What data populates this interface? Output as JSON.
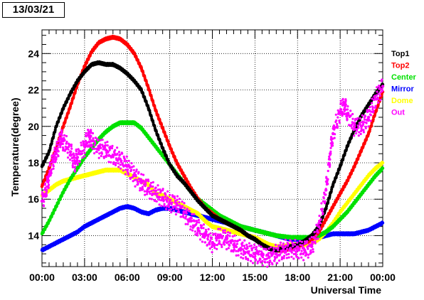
{
  "header": {
    "date_label": "13/03/21"
  },
  "chart_data": {
    "type": "scatter",
    "title": "",
    "xlabel": "Universal Time",
    "ylabel": "Temperature(degree)",
    "xlim": [
      0,
      24
    ],
    "ylim": [
      12.3,
      25.3
    ],
    "x_ticks": [
      0,
      3,
      6,
      9,
      12,
      15,
      18,
      21,
      24
    ],
    "x_tick_labels": [
      "00:00",
      "03:00",
      "06:00",
      "09:00",
      "12:00",
      "15:00",
      "18:00",
      "21:00",
      "00:00"
    ],
    "y_ticks": [
      14,
      16,
      18,
      20,
      22,
      24
    ],
    "y_tick_labels": [
      "14",
      "16",
      "18",
      "20",
      "22",
      "24"
    ],
    "grid": true,
    "legend_position": "right",
    "series": [
      {
        "name": "Top1",
        "color": "#000000",
        "points": [
          [
            0,
            17.8
          ],
          [
            0.5,
            18.6
          ],
          [
            1,
            20.0
          ],
          [
            1.5,
            21.0
          ],
          [
            2,
            21.8
          ],
          [
            2.5,
            22.5
          ],
          [
            3,
            23.0
          ],
          [
            3.5,
            23.4
          ],
          [
            4,
            23.5
          ],
          [
            4.5,
            23.4
          ],
          [
            5,
            23.4
          ],
          [
            5.5,
            23.2
          ],
          [
            6,
            22.9
          ],
          [
            6.5,
            22.5
          ],
          [
            7,
            22.0
          ],
          [
            7.5,
            21.0
          ],
          [
            8,
            19.8
          ],
          [
            8.5,
            18.8
          ],
          [
            9,
            17.9
          ],
          [
            9.5,
            17.3
          ],
          [
            10,
            16.9
          ],
          [
            10.5,
            16.4
          ],
          [
            11,
            15.9
          ],
          [
            11.5,
            15.5
          ],
          [
            12,
            15.1
          ],
          [
            12.5,
            14.9
          ],
          [
            13,
            14.7
          ],
          [
            13.5,
            14.5
          ],
          [
            14,
            14.3
          ],
          [
            14.5,
            14.0
          ],
          [
            15,
            13.8
          ],
          [
            15.5,
            13.5
          ],
          [
            16,
            13.3
          ],
          [
            16.5,
            13.2
          ],
          [
            17,
            13.3
          ],
          [
            17.5,
            13.4
          ],
          [
            18,
            13.5
          ],
          [
            18.5,
            13.7
          ],
          [
            19,
            14.0
          ],
          [
            19.5,
            14.5
          ],
          [
            20,
            15.5
          ],
          [
            20.5,
            16.8
          ],
          [
            21,
            17.8
          ],
          [
            21.5,
            18.9
          ],
          [
            22,
            19.8
          ],
          [
            22.5,
            20.6
          ],
          [
            23,
            21.2
          ],
          [
            23.5,
            21.8
          ],
          [
            24,
            22.3
          ]
        ]
      },
      {
        "name": "Top2",
        "color": "#ff0000",
        "points": [
          [
            0,
            16.7
          ],
          [
            0.5,
            17.7
          ],
          [
            1,
            18.8
          ],
          [
            1.5,
            20.0
          ],
          [
            2,
            21.1
          ],
          [
            2.5,
            22.3
          ],
          [
            3,
            23.3
          ],
          [
            3.5,
            24.1
          ],
          [
            4,
            24.6
          ],
          [
            4.5,
            24.8
          ],
          [
            5,
            24.9
          ],
          [
            5.5,
            24.8
          ],
          [
            6,
            24.5
          ],
          [
            6.5,
            24.0
          ],
          [
            7,
            23.2
          ],
          [
            7.5,
            22.1
          ],
          [
            8,
            20.9
          ],
          [
            8.5,
            19.9
          ],
          [
            9,
            18.9
          ],
          [
            9.5,
            18.0
          ],
          [
            10,
            17.3
          ],
          [
            10.5,
            16.6
          ],
          [
            11,
            16.0
          ],
          [
            11.5,
            15.5
          ],
          [
            12,
            15.2
          ],
          [
            12.5,
            14.9
          ],
          [
            13,
            14.7
          ],
          [
            13.5,
            14.5
          ],
          [
            14,
            14.3
          ],
          [
            14.5,
            14.0
          ],
          [
            15,
            13.8
          ],
          [
            15.5,
            13.5
          ],
          [
            16,
            13.3
          ],
          [
            16.5,
            13.2
          ],
          [
            17,
            13.2
          ],
          [
            17.5,
            13.3
          ],
          [
            18,
            13.4
          ],
          [
            18.5,
            13.6
          ],
          [
            19,
            13.8
          ],
          [
            19.5,
            14.2
          ],
          [
            20,
            14.9
          ],
          [
            20.5,
            15.6
          ],
          [
            21,
            16.3
          ],
          [
            21.5,
            17.0
          ],
          [
            22,
            17.8
          ],
          [
            22.5,
            18.7
          ],
          [
            23,
            19.6
          ],
          [
            23.5,
            20.8
          ],
          [
            24,
            21.9
          ]
        ]
      },
      {
        "name": "Center",
        "color": "#00e000",
        "points": [
          [
            0,
            14.1
          ],
          [
            0.5,
            14.8
          ],
          [
            1,
            15.6
          ],
          [
            1.5,
            16.4
          ],
          [
            2,
            17.1
          ],
          [
            2.5,
            17.7
          ],
          [
            3,
            18.3
          ],
          [
            3.5,
            18.8
          ],
          [
            4,
            19.3
          ],
          [
            4.5,
            19.7
          ],
          [
            5,
            20.0
          ],
          [
            5.5,
            20.2
          ],
          [
            6,
            20.2
          ],
          [
            6.5,
            20.2
          ],
          [
            7,
            19.9
          ],
          [
            7.5,
            19.4
          ],
          [
            8,
            18.9
          ],
          [
            8.5,
            18.4
          ],
          [
            9,
            17.9
          ],
          [
            9.5,
            17.4
          ],
          [
            10,
            16.9
          ],
          [
            10.5,
            16.4
          ],
          [
            11,
            16.0
          ],
          [
            11.5,
            15.7
          ],
          [
            12,
            15.4
          ],
          [
            12.5,
            15.1
          ],
          [
            13,
            14.9
          ],
          [
            13.5,
            14.7
          ],
          [
            14,
            14.5
          ],
          [
            14.5,
            14.4
          ],
          [
            15,
            14.3
          ],
          [
            15.5,
            14.2
          ],
          [
            16,
            14.1
          ],
          [
            16.5,
            14.0
          ],
          [
            17,
            13.95
          ],
          [
            17.5,
            13.9
          ],
          [
            18,
            13.9
          ],
          [
            18.5,
            13.9
          ],
          [
            19,
            13.9
          ],
          [
            19.5,
            14.0
          ],
          [
            20,
            14.2
          ],
          [
            20.5,
            14.5
          ],
          [
            21,
            14.9
          ],
          [
            21.5,
            15.3
          ],
          [
            22,
            15.8
          ],
          [
            22.5,
            16.3
          ],
          [
            23,
            16.8
          ],
          [
            23.5,
            17.3
          ],
          [
            24,
            17.7
          ]
        ]
      },
      {
        "name": "Mirror",
        "color": "#0000ff",
        "points": [
          [
            0,
            13.2
          ],
          [
            0.5,
            13.4
          ],
          [
            1,
            13.6
          ],
          [
            1.5,
            13.8
          ],
          [
            2,
            14.0
          ],
          [
            2.5,
            14.2
          ],
          [
            3,
            14.5
          ],
          [
            3.5,
            14.7
          ],
          [
            4,
            14.9
          ],
          [
            4.5,
            15.1
          ],
          [
            5,
            15.3
          ],
          [
            5.5,
            15.5
          ],
          [
            6,
            15.6
          ],
          [
            6.5,
            15.5
          ],
          [
            7,
            15.3
          ],
          [
            7.5,
            15.2
          ],
          [
            8,
            15.4
          ],
          [
            8.5,
            15.5
          ],
          [
            9,
            15.5
          ],
          [
            9.5,
            15.4
          ],
          [
            10,
            15.3
          ],
          [
            10.5,
            15.2
          ],
          [
            11,
            15.1
          ],
          [
            11.5,
            15.0
          ],
          [
            12,
            14.9
          ],
          [
            12.5,
            14.8
          ],
          [
            13,
            14.7
          ],
          [
            13.5,
            14.6
          ],
          [
            14,
            14.5
          ],
          [
            14.5,
            14.4
          ],
          [
            15,
            14.3
          ],
          [
            15.5,
            14.2
          ],
          [
            16,
            14.1
          ],
          [
            16.5,
            14.0
          ],
          [
            17,
            13.9
          ],
          [
            17.5,
            13.8
          ],
          [
            18,
            13.8
          ],
          [
            18.5,
            13.8
          ],
          [
            19,
            13.8
          ],
          [
            19.5,
            13.9
          ],
          [
            20,
            14.0
          ],
          [
            20.5,
            14.1
          ],
          [
            21,
            14.1
          ],
          [
            21.5,
            14.1
          ],
          [
            22,
            14.1
          ],
          [
            22.5,
            14.2
          ],
          [
            23,
            14.3
          ],
          [
            23.5,
            14.5
          ],
          [
            24,
            14.7
          ]
        ]
      },
      {
        "name": "Dome",
        "color": "#ffff00",
        "points": [
          [
            0,
            16.2
          ],
          [
            0.5,
            16.5
          ],
          [
            1,
            16.8
          ],
          [
            1.5,
            17.0
          ],
          [
            2,
            17.1
          ],
          [
            2.5,
            17.2
          ],
          [
            3,
            17.3
          ],
          [
            3.5,
            17.4
          ],
          [
            4,
            17.5
          ],
          [
            4.5,
            17.6
          ],
          [
            5,
            17.6
          ],
          [
            5.5,
            17.6
          ],
          [
            6,
            17.4
          ],
          [
            6.5,
            17.2
          ],
          [
            7,
            17.0
          ],
          [
            7.5,
            16.8
          ],
          [
            8,
            16.3
          ],
          [
            8.5,
            16.2
          ],
          [
            9,
            16.0
          ],
          [
            9.5,
            15.8
          ],
          [
            10,
            15.6
          ],
          [
            10.5,
            15.4
          ],
          [
            11,
            15.2
          ],
          [
            11.5,
            14.8
          ],
          [
            12,
            14.5
          ],
          [
            12.5,
            14.4
          ],
          [
            13,
            14.3
          ],
          [
            13.5,
            14.2
          ],
          [
            14,
            14.1
          ],
          [
            14.5,
            14.0
          ],
          [
            15,
            13.9
          ],
          [
            15.5,
            13.7
          ],
          [
            16,
            13.5
          ],
          [
            16.5,
            13.4
          ],
          [
            17,
            13.4
          ],
          [
            17.5,
            13.5
          ],
          [
            18,
            13.5
          ],
          [
            18.5,
            13.5
          ],
          [
            19,
            13.6
          ],
          [
            19.5,
            13.8
          ],
          [
            20,
            14.2
          ],
          [
            20.5,
            14.7
          ],
          [
            21,
            15.3
          ],
          [
            21.5,
            15.8
          ],
          [
            22,
            16.3
          ],
          [
            22.5,
            16.8
          ],
          [
            23,
            17.3
          ],
          [
            23.5,
            17.7
          ],
          [
            24,
            18.0
          ]
        ]
      },
      {
        "name": "Out",
        "color": "#ff00ff",
        "points": [
          [
            0,
            15.9
          ],
          [
            0.3,
            16.5
          ],
          [
            0.5,
            17.3
          ],
          [
            0.8,
            18.2
          ],
          [
            1,
            18.5
          ],
          [
            1.3,
            19.3
          ],
          [
            1.5,
            19.2
          ],
          [
            2,
            18.6
          ],
          [
            2.3,
            18.0
          ],
          [
            2.5,
            18.3
          ],
          [
            3,
            18.9
          ],
          [
            3.3,
            19.5
          ],
          [
            3.5,
            19.2
          ],
          [
            4,
            18.8
          ],
          [
            4.5,
            18.7
          ],
          [
            5,
            18.4
          ],
          [
            5.5,
            18.2
          ],
          [
            6,
            17.8
          ],
          [
            6.5,
            17.3
          ],
          [
            7,
            16.9
          ],
          [
            7.5,
            16.6
          ],
          [
            8,
            16.3
          ],
          [
            8.5,
            16.1
          ],
          [
            9,
            15.8
          ],
          [
            9.5,
            15.7
          ],
          [
            10,
            15.3
          ],
          [
            10.5,
            14.8
          ],
          [
            11,
            14.4
          ],
          [
            11.5,
            14.0
          ],
          [
            12,
            13.6
          ],
          [
            12.5,
            13.9
          ],
          [
            13,
            13.8
          ],
          [
            13.5,
            13.5
          ],
          [
            14,
            13.3
          ],
          [
            14.5,
            13.1
          ],
          [
            15,
            13.0
          ],
          [
            15.5,
            12.9
          ],
          [
            16,
            12.8
          ],
          [
            16.5,
            13.0
          ],
          [
            17,
            13.2
          ],
          [
            17.5,
            13.3
          ],
          [
            18,
            13.2
          ],
          [
            18.5,
            13.2
          ],
          [
            19,
            13.4
          ],
          [
            19.5,
            14.5
          ],
          [
            20,
            16.5
          ],
          [
            20.3,
            18.5
          ],
          [
            20.5,
            19.6
          ],
          [
            21,
            20.8
          ],
          [
            21.3,
            21.2
          ],
          [
            21.5,
            20.7
          ],
          [
            22,
            20.0
          ],
          [
            22.5,
            20.0
          ],
          [
            23,
            20.5
          ],
          [
            23.5,
            21.5
          ],
          [
            24,
            22.2
          ]
        ]
      }
    ]
  }
}
